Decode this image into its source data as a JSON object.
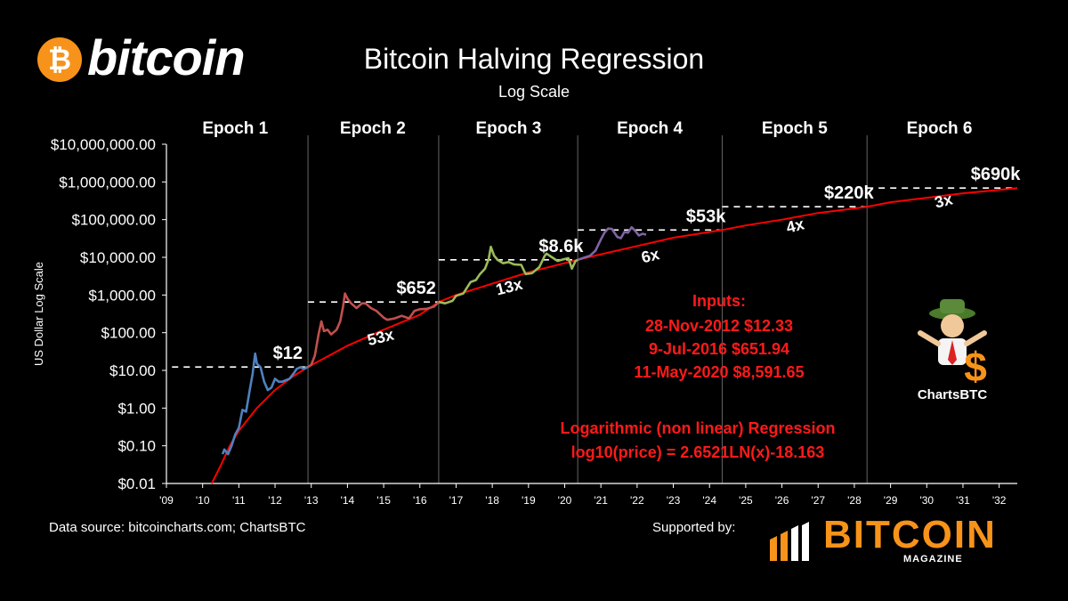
{
  "branding": {
    "logo_coin_glyph": "₿",
    "logo_word": "bitcoin",
    "magazine_word": "BITCOIN",
    "magazine_sub": "MAGAZINE",
    "mascot_label": "ChartsBTC",
    "accent_color": "#f7931a"
  },
  "footer": {
    "source": "Data source: bitcoincharts.com; ChartsBTC",
    "supported_by": "Supported by:"
  },
  "chart_data": {
    "type": "line",
    "title": "Bitcoin Halving Regression",
    "subtitle": "Log Scale",
    "ylabel": "US Dollar Log Scale",
    "xlabel": "",
    "y_scale": "log",
    "ylim": [
      0.01,
      10000000
    ],
    "xlim": [
      2009,
      2032.5
    ],
    "y_ticks": [
      {
        "value": 0.01,
        "label": "$0.01"
      },
      {
        "value": 0.1,
        "label": "$0.10"
      },
      {
        "value": 1,
        "label": "$1.00"
      },
      {
        "value": 10,
        "label": "$10.00"
      },
      {
        "value": 100,
        "label": "$100.00"
      },
      {
        "value": 1000,
        "label": "$1,000.00"
      },
      {
        "value": 10000,
        "label": "$10,000.00"
      },
      {
        "value": 100000,
        "label": "$100,000.00"
      },
      {
        "value": 1000000,
        "label": "$1,000,000.00"
      },
      {
        "value": 10000000,
        "label": "$10,000,000.00"
      }
    ],
    "x_ticks": [
      {
        "value": 2009,
        "label": "'09"
      },
      {
        "value": 2010,
        "label": "'10"
      },
      {
        "value": 2011,
        "label": "'11"
      },
      {
        "value": 2012,
        "label": "'12"
      },
      {
        "value": 2013,
        "label": "'13"
      },
      {
        "value": 2014,
        "label": "'14"
      },
      {
        "value": 2015,
        "label": "'15"
      },
      {
        "value": 2016,
        "label": "'16"
      },
      {
        "value": 2017,
        "label": "'17"
      },
      {
        "value": 2018,
        "label": "'18"
      },
      {
        "value": 2019,
        "label": "'19"
      },
      {
        "value": 2020,
        "label": "'20"
      },
      {
        "value": 2021,
        "label": "'21"
      },
      {
        "value": 2022,
        "label": "'22"
      },
      {
        "value": 2023,
        "label": "'23"
      },
      {
        "value": 2024,
        "label": "'24"
      },
      {
        "value": 2025,
        "label": "'25"
      },
      {
        "value": 2026,
        "label": "'26"
      },
      {
        "value": 2027,
        "label": "'27"
      },
      {
        "value": 2028,
        "label": "'28"
      },
      {
        "value": 2029,
        "label": "'29"
      },
      {
        "value": 2030,
        "label": "'30"
      },
      {
        "value": 2031,
        "label": "'31"
      },
      {
        "value": 2032,
        "label": "'32"
      }
    ],
    "halvings": [
      2012.91,
      2016.52,
      2020.36,
      2024.35,
      2028.35
    ],
    "epochs": [
      {
        "label": "Epoch 1",
        "center": 2010.9
      },
      {
        "label": "Epoch 2",
        "center": 2014.7
      },
      {
        "label": "Epoch 3",
        "center": 2018.45
      },
      {
        "label": "Epoch 4",
        "center": 2022.35
      },
      {
        "label": "Epoch 5",
        "center": 2026.35
      },
      {
        "label": "Epoch 6",
        "center": 2030.35
      }
    ],
    "regression": {
      "name": "Logarithmic (non linear) Regression",
      "formula": "log10(price) = 2.6521LN(x)-18.163",
      "color": "#ff0000",
      "points": [
        [
          2010.25,
          0.01
        ],
        [
          2010.5,
          0.03
        ],
        [
          2010.75,
          0.1
        ],
        [
          2011.0,
          0.25
        ],
        [
          2011.5,
          1.0
        ],
        [
          2012.0,
          3.0
        ],
        [
          2012.5,
          7.0
        ],
        [
          2012.91,
          12.33
        ],
        [
          2013.5,
          25
        ],
        [
          2014.0,
          45
        ],
        [
          2015.0,
          120
        ],
        [
          2016.0,
          300
        ],
        [
          2016.52,
          651.94
        ],
        [
          2017.0,
          1000
        ],
        [
          2018.0,
          2000
        ],
        [
          2019.0,
          4000
        ],
        [
          2020.36,
          8591.65
        ],
        [
          2021.0,
          12000
        ],
        [
          2022.0,
          20000
        ],
        [
          2023.0,
          33000
        ],
        [
          2024.35,
          53000
        ],
        [
          2025.0,
          70000
        ],
        [
          2026.0,
          100000
        ],
        [
          2027.0,
          150000
        ],
        [
          2028.35,
          220000
        ],
        [
          2029.0,
          290000
        ],
        [
          2030.0,
          380000
        ],
        [
          2031.0,
          500000
        ],
        [
          2032.5,
          690000
        ]
      ]
    },
    "series": [
      {
        "name": "Epoch 1",
        "color": "#4f81bd",
        "points": [
          [
            2010.55,
            0.06
          ],
          [
            2010.6,
            0.08
          ],
          [
            2010.7,
            0.06
          ],
          [
            2010.8,
            0.1
          ],
          [
            2010.9,
            0.2
          ],
          [
            2011.0,
            0.3
          ],
          [
            2011.1,
            0.9
          ],
          [
            2011.2,
            0.8
          ],
          [
            2011.3,
            3
          ],
          [
            2011.38,
            8
          ],
          [
            2011.45,
            28
          ],
          [
            2011.5,
            15
          ],
          [
            2011.6,
            12
          ],
          [
            2011.7,
            5
          ],
          [
            2011.8,
            3
          ],
          [
            2011.9,
            3.5
          ],
          [
            2012.0,
            6
          ],
          [
            2012.1,
            5
          ],
          [
            2012.2,
            5
          ],
          [
            2012.3,
            5.5
          ],
          [
            2012.4,
            6
          ],
          [
            2012.5,
            8
          ],
          [
            2012.6,
            11
          ],
          [
            2012.7,
            12
          ],
          [
            2012.8,
            11
          ],
          [
            2012.91,
            12.33
          ]
        ]
      },
      {
        "name": "Epoch 2",
        "color": "#c0504d",
        "points": [
          [
            2012.91,
            12.33
          ],
          [
            2013.0,
            14
          ],
          [
            2013.1,
            25
          ],
          [
            2013.2,
            90
          ],
          [
            2013.28,
            200
          ],
          [
            2013.35,
            110
          ],
          [
            2013.45,
            120
          ],
          [
            2013.55,
            90
          ],
          [
            2013.7,
            120
          ],
          [
            2013.8,
            200
          ],
          [
            2013.88,
            500
          ],
          [
            2013.93,
            1100
          ],
          [
            2014.0,
            800
          ],
          [
            2014.1,
            600
          ],
          [
            2014.25,
            450
          ],
          [
            2014.4,
            600
          ],
          [
            2014.5,
            600
          ],
          [
            2014.65,
            450
          ],
          [
            2014.8,
            380
          ],
          [
            2015.0,
            250
          ],
          [
            2015.1,
            220
          ],
          [
            2015.3,
            240
          ],
          [
            2015.5,
            280
          ],
          [
            2015.7,
            240
          ],
          [
            2015.85,
            380
          ],
          [
            2016.0,
            420
          ],
          [
            2016.2,
            430
          ],
          [
            2016.4,
            500
          ],
          [
            2016.52,
            651.94
          ]
        ]
      },
      {
        "name": "Epoch 3",
        "color": "#9bbb59",
        "points": [
          [
            2016.52,
            651.94
          ],
          [
            2016.7,
            600
          ],
          [
            2016.9,
            700
          ],
          [
            2017.0,
            950
          ],
          [
            2017.2,
            1100
          ],
          [
            2017.4,
            2200
          ],
          [
            2017.55,
            2500
          ],
          [
            2017.65,
            3500
          ],
          [
            2017.8,
            5000
          ],
          [
            2017.9,
            9000
          ],
          [
            2017.96,
            19000
          ],
          [
            2018.05,
            11000
          ],
          [
            2018.15,
            8500
          ],
          [
            2018.3,
            7000
          ],
          [
            2018.45,
            7500
          ],
          [
            2018.6,
            6500
          ],
          [
            2018.8,
            6300
          ],
          [
            2018.92,
            3600
          ],
          [
            2019.1,
            3800
          ],
          [
            2019.3,
            5500
          ],
          [
            2019.45,
            11000
          ],
          [
            2019.5,
            12500
          ],
          [
            2019.65,
            10000
          ],
          [
            2019.8,
            8000
          ],
          [
            2020.0,
            9000
          ],
          [
            2020.1,
            9500
          ],
          [
            2020.2,
            5000
          ],
          [
            2020.3,
            8000
          ],
          [
            2020.36,
            8591.65
          ]
        ]
      },
      {
        "name": "Epoch 4",
        "color": "#8064a2",
        "points": [
          [
            2020.36,
            8591.65
          ],
          [
            2020.5,
            9500
          ],
          [
            2020.7,
            11000
          ],
          [
            2020.85,
            15000
          ],
          [
            2021.0,
            30000
          ],
          [
            2021.1,
            45000
          ],
          [
            2021.2,
            58000
          ],
          [
            2021.3,
            57000
          ],
          [
            2021.45,
            35000
          ],
          [
            2021.55,
            32000
          ],
          [
            2021.65,
            47000
          ],
          [
            2021.75,
            45000
          ],
          [
            2021.85,
            63000
          ],
          [
            2021.95,
            50000
          ],
          [
            2022.05,
            38000
          ],
          [
            2022.15,
            42000
          ],
          [
            2022.25,
            40000
          ]
        ]
      }
    ],
    "halving_prices": [
      {
        "label": "$12",
        "value": 12.33,
        "label_x": 2012.35
      },
      {
        "label": "$652",
        "value": 651.94,
        "label_x": 2015.9
      },
      {
        "label": "$8.6k",
        "value": 8591.65,
        "label_x": 2019.9
      },
      {
        "label": "$53k",
        "value": 53000,
        "label_x": 2023.9
      },
      {
        "label": "$220k",
        "value": 220000,
        "label_x": 2027.85
      },
      {
        "label": "$690k",
        "value": 690000,
        "label_x": 2031.9
      }
    ],
    "multipliers": [
      {
        "label": "53x",
        "x": 2014.95,
        "y": 55
      },
      {
        "label": "13x",
        "x": 2018.5,
        "y": 1200
      },
      {
        "label": "6x",
        "x": 2022.4,
        "y": 8000
      },
      {
        "label": "4x",
        "x": 2026.4,
        "y": 50000
      },
      {
        "label": "3x",
        "x": 2030.5,
        "y": 230000
      }
    ],
    "inputs": {
      "heading": "Inputs:",
      "lines": [
        "28-Nov-2012 $12.33",
        "9-Jul-2016 $651.94",
        "11-May-2020 $8,591.65"
      ]
    },
    "grid": false,
    "legend": "none"
  }
}
